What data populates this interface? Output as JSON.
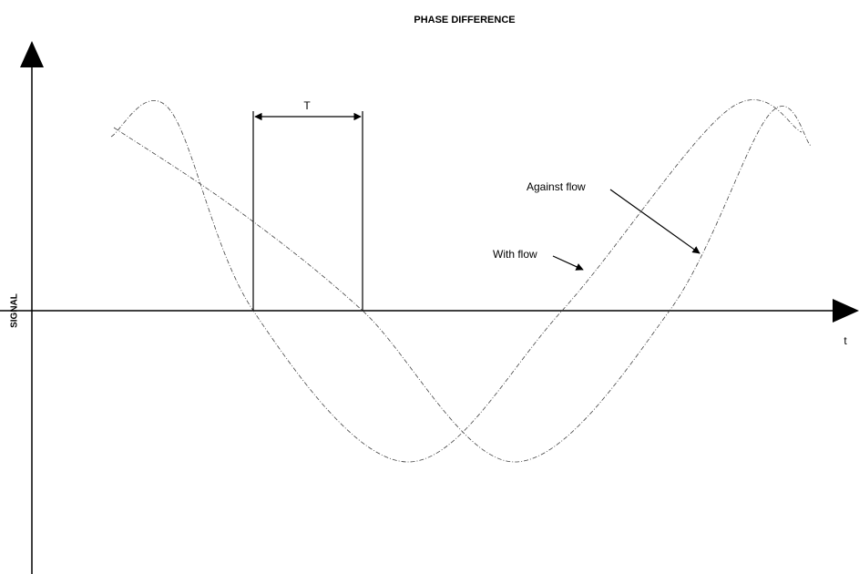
{
  "title": "PHASE DIFFERENCE",
  "y_axis_label": "SIGNAL",
  "x_axis_label": "t",
  "period_label": "T",
  "annotations": [
    "Against flow",
    "With flow"
  ]
}
